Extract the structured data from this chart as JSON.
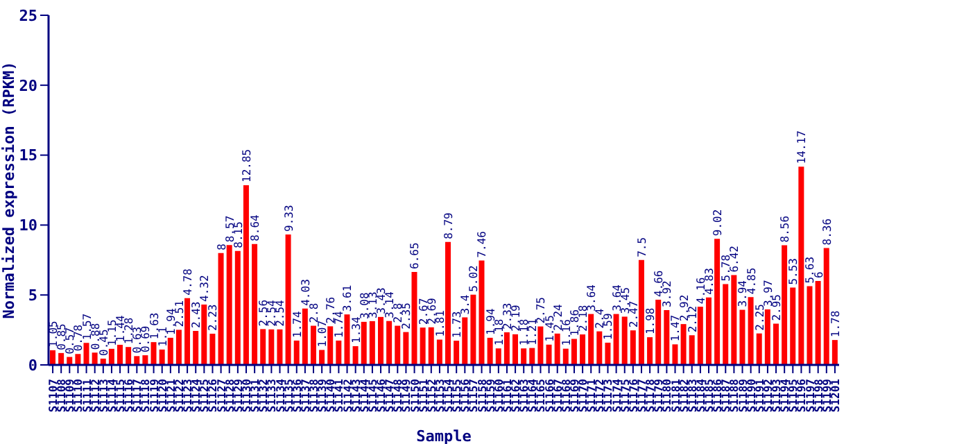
{
  "chart_data": {
    "type": "bar",
    "xlabel": "Sample",
    "ylabel": "Normalized expression (RPKM)",
    "categories": [
      "S1107",
      "S1108",
      "S1109",
      "S1110",
      "S1111",
      "S1112",
      "S1113",
      "S1114",
      "S1115",
      "S1116",
      "S1117",
      "S1118",
      "S1119",
      "S1120",
      "S1121",
      "S1122",
      "S1123",
      "S1124",
      "S1125",
      "S1126",
      "S1127",
      "S1128",
      "S1129",
      "S1130",
      "S1131",
      "S1132",
      "S1133",
      "S1134",
      "S1135",
      "S1136",
      "S1137",
      "S1138",
      "S1139",
      "S1140",
      "S1141",
      "S1142",
      "S1143",
      "S1144",
      "S1145",
      "S1146",
      "S1147",
      "S1148",
      "S1149",
      "S1150",
      "S1151",
      "S1152",
      "S1153",
      "S1154",
      "S1155",
      "S1156",
      "S1157",
      "S1158",
      "S1159",
      "S1160",
      "S1161",
      "S1162",
      "S1163",
      "S1164",
      "S1165",
      "S1166",
      "S1167",
      "S1168",
      "S1169",
      "S1170",
      "S1171",
      "S1172",
      "S1173",
      "S1174",
      "S1175",
      "S1176",
      "S1177",
      "S1178",
      "S1179",
      "S1180",
      "S1181",
      "S1182",
      "S1183",
      "S1184",
      "S1185",
      "S1186",
      "S1187",
      "S1188",
      "S1189",
      "S1190",
      "S1191",
      "S1192",
      "S1193",
      "S1194",
      "S1195",
      "S1196",
      "S1197",
      "S1198",
      "S1199",
      "S1201"
    ],
    "values": [
      1.05,
      0.85,
      0.57,
      0.78,
      1.57,
      0.88,
      0.45,
      1.15,
      1.44,
      1.28,
      0.63,
      0.69,
      1.63,
      1.1,
      1.94,
      2.51,
      4.78,
      2.43,
      4.32,
      2.23,
      8,
      8.57,
      8.15,
      12.85,
      8.64,
      2.56,
      2.54,
      2.54,
      9.33,
      1.74,
      4.03,
      2.8,
      1.07,
      2.76,
      1.74,
      3.61,
      1.34,
      3.08,
      3.13,
      3.43,
      3.14,
      2.8,
      2.35,
      6.65,
      2.67,
      2.69,
      1.81,
      8.79,
      1.73,
      3.4,
      5.02,
      7.46,
      1.94,
      1.18,
      2.33,
      2.19,
      1.18,
      1.21,
      2.75,
      1.45,
      2.24,
      1.16,
      1.86,
      2.18,
      3.64,
      2.4,
      1.59,
      3.64,
      3.45,
      2.47,
      7.5,
      1.98,
      4.66,
      3.92,
      1.47,
      2.92,
      2.12,
      4.16,
      4.83,
      9.02,
      5.78,
      6.42,
      3.94,
      4.85,
      2.25,
      3.97,
      2.95,
      8.56,
      5.53,
      14.17,
      5.63,
      6,
      8.36,
      1.78
    ],
    "color": "#ff0000",
    "data_labels": true,
    "ylim": [
      0,
      25
    ],
    "yticks": [
      0,
      5,
      10,
      15,
      20,
      25
    ],
    "grid": false,
    "legend": false
  }
}
